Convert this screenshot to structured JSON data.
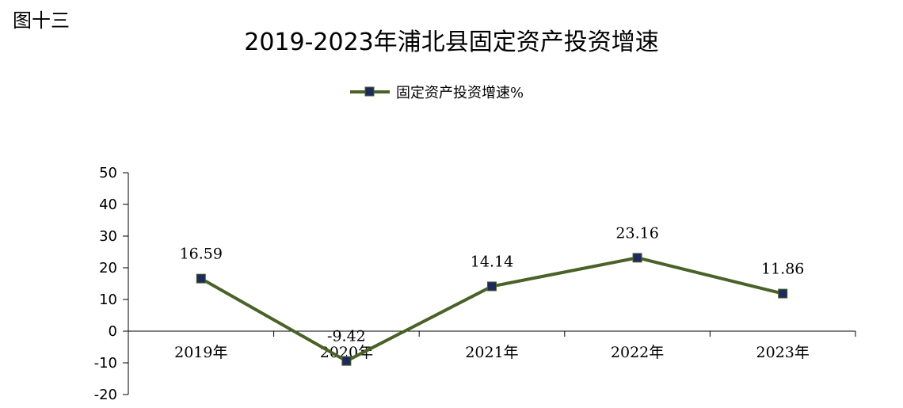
{
  "figure_label": "图十三",
  "chart_data": {
    "type": "line",
    "title": "2019-2023年浦北县固定资产投资增速",
    "categories": [
      "2019年",
      "2020年",
      "2021年",
      "2022年",
      "2023年"
    ],
    "series": [
      {
        "name": "固定资产投资增速%",
        "values": [
          16.59,
          -9.42,
          14.14,
          23.16,
          11.86
        ],
        "labels": [
          "16.59",
          "-9.42",
          "14.14",
          "23.16",
          "11.86"
        ],
        "color": "#4a6128",
        "marker_color": "#1f2a5c"
      }
    ],
    "ylim": [
      -20,
      50
    ],
    "yticks": [
      "50",
      "40",
      "30",
      "20",
      "10",
      "0",
      "-10",
      "-20"
    ],
    "ytick_values": [
      50,
      40,
      30,
      20,
      10,
      0,
      -10,
      -20
    ],
    "legend_position": "top",
    "grid": false
  }
}
